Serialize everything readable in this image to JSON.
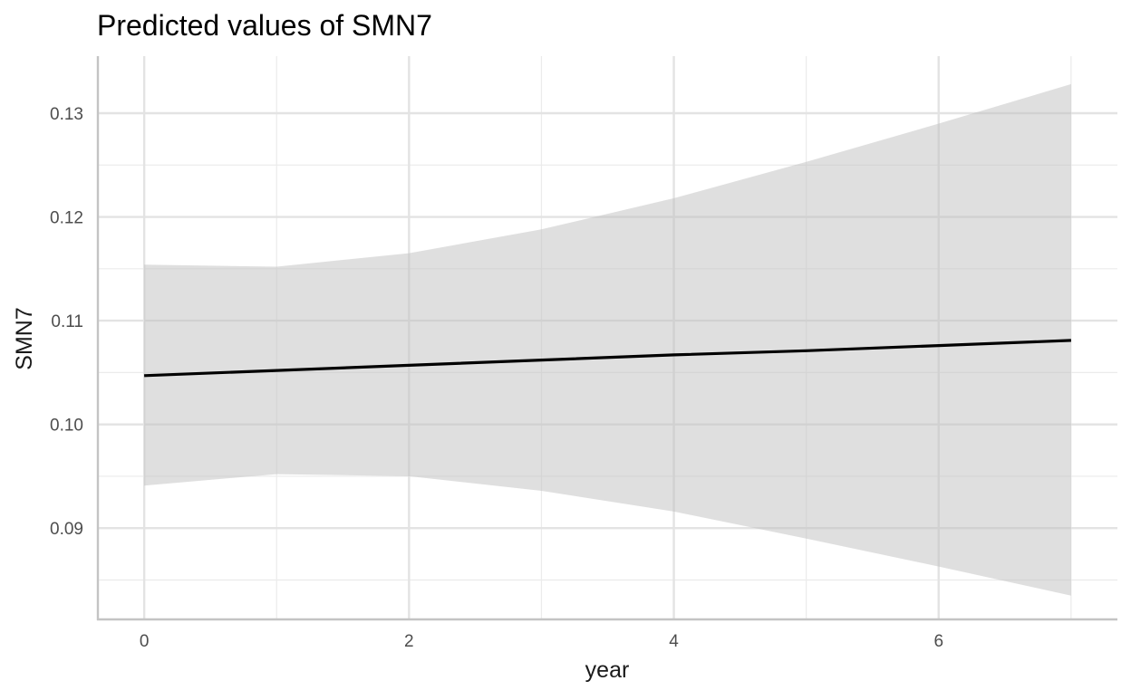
{
  "chart_data": {
    "type": "line",
    "title": "Predicted values of SMN7",
    "xlabel": "year",
    "ylabel": "SMN7",
    "xlim": [
      -0.35,
      7.35
    ],
    "ylim": [
      0.0812,
      0.1355
    ],
    "x_ticks": [
      0,
      2,
      4,
      6
    ],
    "x_tick_labels": [
      "0",
      "2",
      "4",
      "6"
    ],
    "x_minor_ticks": [
      1,
      3,
      5,
      7
    ],
    "y_ticks": [
      0.09,
      0.1,
      0.11,
      0.12,
      0.13
    ],
    "y_tick_labels": [
      "0.09",
      "0.10",
      "0.11",
      "0.12",
      "0.13"
    ],
    "y_minor_ticks": [
      0.085,
      0.095,
      0.105,
      0.115,
      0.125
    ],
    "grid": true,
    "legend": "none",
    "series": [
      {
        "x": [
          0,
          1,
          2,
          3,
          4,
          5,
          6,
          7
        ],
        "values": [
          0.1047,
          0.1052,
          0.1057,
          0.1062,
          0.1067,
          0.1071,
          0.1076,
          0.1081
        ],
        "ci_lower": [
          0.0941,
          0.0952,
          0.095,
          0.0936,
          0.0916,
          0.089,
          0.0863,
          0.0835
        ],
        "ci_upper": [
          0.1154,
          0.1152,
          0.1165,
          0.1188,
          0.1218,
          0.1253,
          0.129,
          0.1328
        ],
        "line_color": "#000000",
        "band_color": "#bfbfbf"
      }
    ]
  }
}
